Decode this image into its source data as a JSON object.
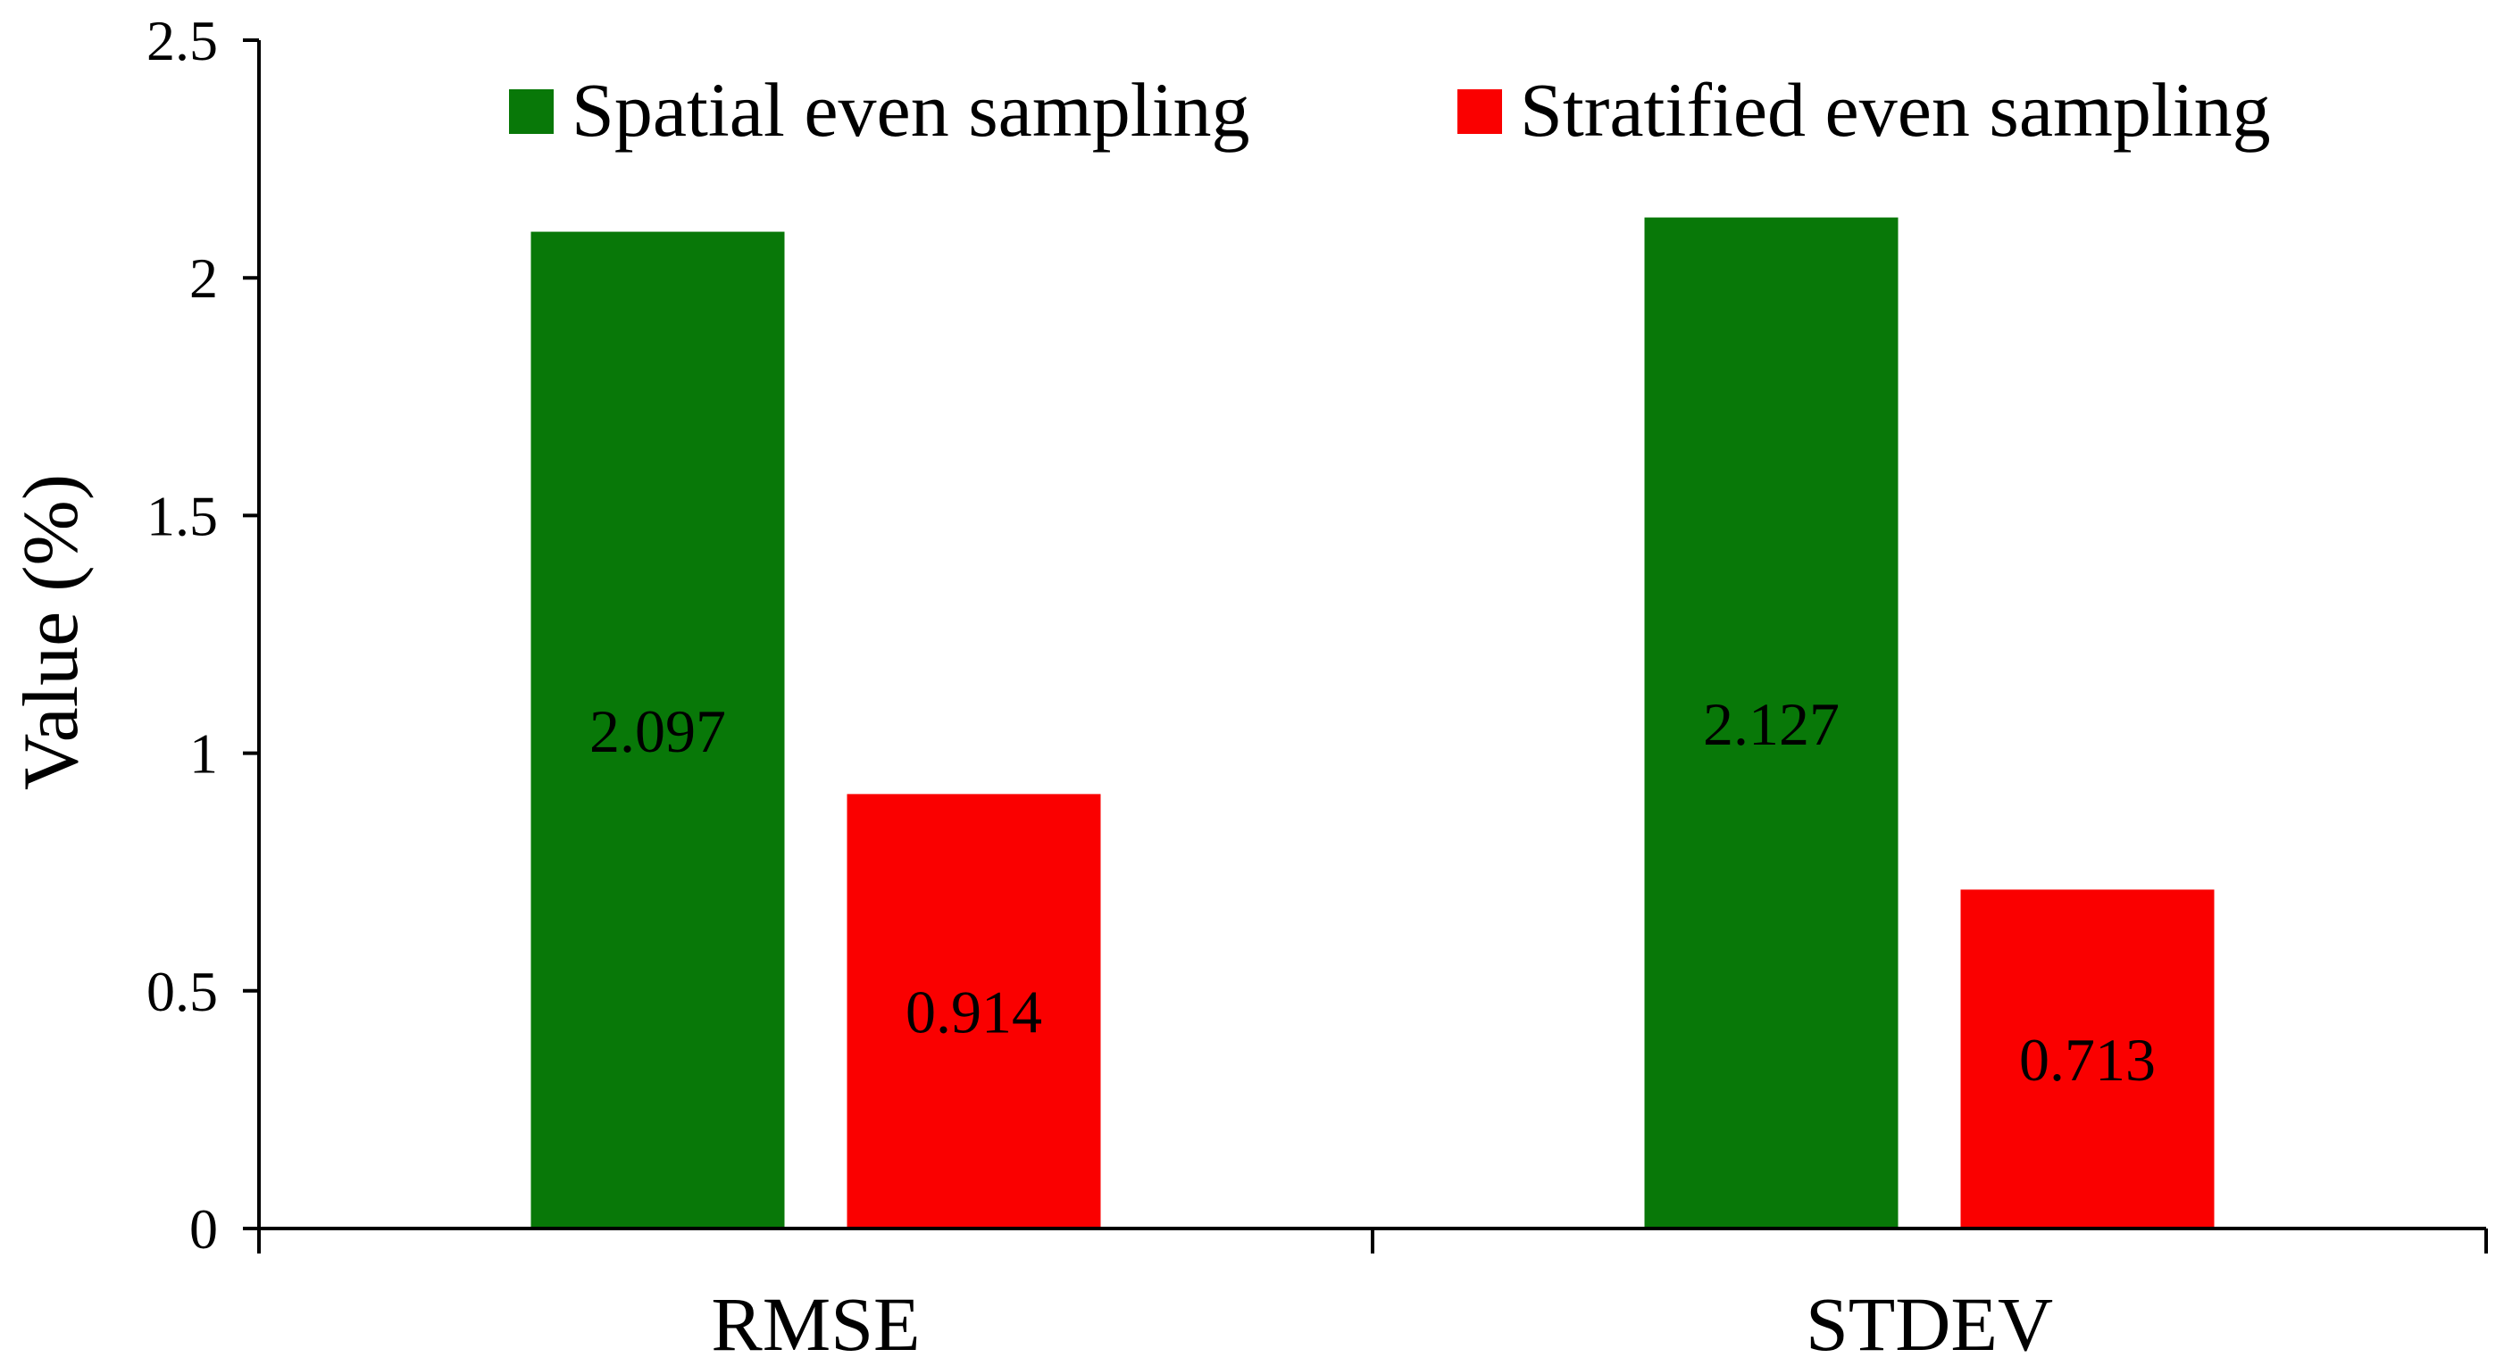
{
  "chart_data": {
    "type": "bar",
    "title": "",
    "xlabel": "",
    "ylabel": "Value (%)",
    "ylim": [
      0,
      2.5
    ],
    "yticks": [
      0,
      0.5,
      1,
      1.5,
      2,
      2.5
    ],
    "ytick_labels": [
      "0",
      "0.5",
      "1",
      "1.5",
      "2",
      "2.5"
    ],
    "categories": [
      "RMSE",
      "STDEV"
    ],
    "series": [
      {
        "name": "Spatial even sampling",
        "color": "#087808",
        "values": [
          2.097,
          2.127
        ],
        "labels": [
          "2.097",
          "2.127"
        ]
      },
      {
        "name": "Stratified even sampling",
        "color": "#fa0000",
        "values": [
          0.914,
          0.713
        ],
        "labels": [
          "0.914",
          "0.713"
        ]
      }
    ],
    "grid": false,
    "legend_position": "top"
  }
}
